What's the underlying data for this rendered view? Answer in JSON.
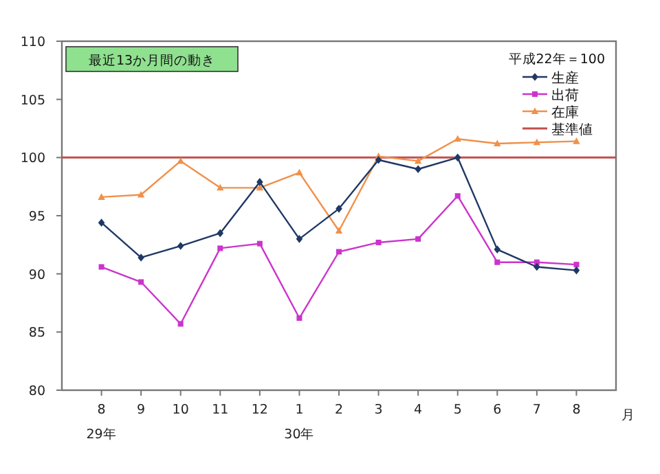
{
  "chart_data": {
    "type": "line",
    "categories": [
      "8\n29年",
      "9",
      "10",
      "11",
      "12",
      "1\n30年",
      "2",
      "3",
      "4",
      "5",
      "6",
      "7",
      "8"
    ],
    "xlabel": "月",
    "series": [
      {
        "name": "生産",
        "color": "#1f3864",
        "marker": "diamond",
        "values": [
          94.4,
          91.4,
          92.4,
          93.5,
          97.9,
          93.0,
          95.6,
          99.8,
          99.0,
          100.0,
          92.1,
          90.6,
          90.3
        ]
      },
      {
        "name": "出荷",
        "color": "#cc33cc",
        "marker": "square",
        "values": [
          90.6,
          89.3,
          85.7,
          92.2,
          92.6,
          86.2,
          91.9,
          92.7,
          93.0,
          96.7,
          91.0,
          91.0,
          90.8
        ]
      },
      {
        "name": "在庫",
        "color": "#f0904a",
        "marker": "triangle",
        "values": [
          96.6,
          96.8,
          99.7,
          97.4,
          97.4,
          98.7,
          93.7,
          100.1,
          99.7,
          101.6,
          101.2,
          101.3,
          101.4
        ]
      }
    ],
    "ref_lines": [
      {
        "axis": "y",
        "value": 100,
        "label": "基準値",
        "color": "#c0504d"
      }
    ],
    "annotations": [
      "最近13か月間の動き",
      "平成22年＝100"
    ],
    "ylim": [
      80,
      110
    ],
    "yticks": [
      80,
      85,
      90,
      95,
      100,
      105,
      110
    ],
    "legend": "top right",
    "grid": false
  }
}
